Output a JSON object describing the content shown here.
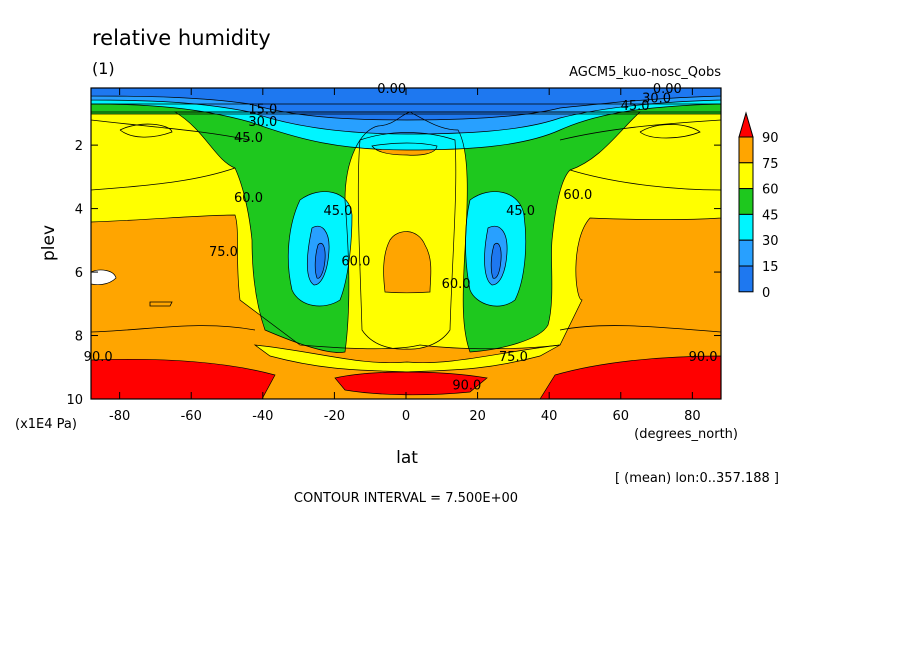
{
  "header": {
    "title": "relative humidity",
    "panel": "(1)",
    "experiment": "AGCM5_kuo-nosc_Qobs"
  },
  "footer": {
    "mean_note": "[ (mean) lon:0..357.188 ]",
    "contour_interval": "CONTOUR INTERVAL = 7.500E+00"
  },
  "chart_data": {
    "type": "heatmap",
    "title": "relative humidity",
    "xlabel": "lat",
    "x_units": "(degrees_north)",
    "ylabel": "plev",
    "y_units": "(x1E4 Pa)",
    "xlim": [
      -88,
      88
    ],
    "ylim": [
      0.2,
      10
    ],
    "y_inverted": true,
    "x_ticks": [
      -80,
      -60,
      -40,
      -20,
      0,
      20,
      40,
      60,
      80
    ],
    "y_ticks": [
      2,
      4,
      6,
      8,
      10
    ],
    "levels": [
      0,
      15,
      30,
      45,
      60,
      75,
      90
    ],
    "level_colors": [
      "#1e78f0",
      "#28a0ff",
      "#00f5ff",
      "#1ec81e",
      "#ffff00",
      "#ffa500",
      "#ff0000"
    ],
    "contour_interval": 7.5,
    "colorbar_labels": [
      "90",
      "75",
      "60",
      "45",
      "30",
      "15",
      "0"
    ],
    "contour_labels": [
      {
        "text": "0.00",
        "lat": -4,
        "plev": 0.35
      },
      {
        "text": "15.0",
        "lat": -40,
        "plev": 1.0
      },
      {
        "text": "30.0",
        "lat": -40,
        "plev": 1.4
      },
      {
        "text": "45.0",
        "lat": -44,
        "plev": 1.9
      },
      {
        "text": "60.0",
        "lat": -44,
        "plev": 3.8
      },
      {
        "text": "45.0",
        "lat": -19,
        "plev": 4.2
      },
      {
        "text": "75.0",
        "lat": -51,
        "plev": 5.5
      },
      {
        "text": "60.0",
        "lat": -14,
        "plev": 5.8
      },
      {
        "text": "60.0",
        "lat": 14,
        "plev": 6.5
      },
      {
        "text": "45.0",
        "lat": 32,
        "plev": 4.2
      },
      {
        "text": "60.0",
        "lat": 48,
        "plev": 3.7
      },
      {
        "text": "75.0",
        "lat": 30,
        "plev": 8.8
      },
      {
        "text": "90.0",
        "lat": -86,
        "plev": 8.8
      },
      {
        "text": "90.0",
        "lat": 83,
        "plev": 8.8
      },
      {
        "text": "90.0",
        "lat": 17,
        "plev": 9.7
      },
      {
        "text": "0.00",
        "lat": 73,
        "plev": 0.35
      },
      {
        "text": "45.0",
        "lat": 64,
        "plev": 0.9
      },
      {
        "text": "30.0",
        "lat": 70,
        "plev": 0.65
      }
    ]
  }
}
